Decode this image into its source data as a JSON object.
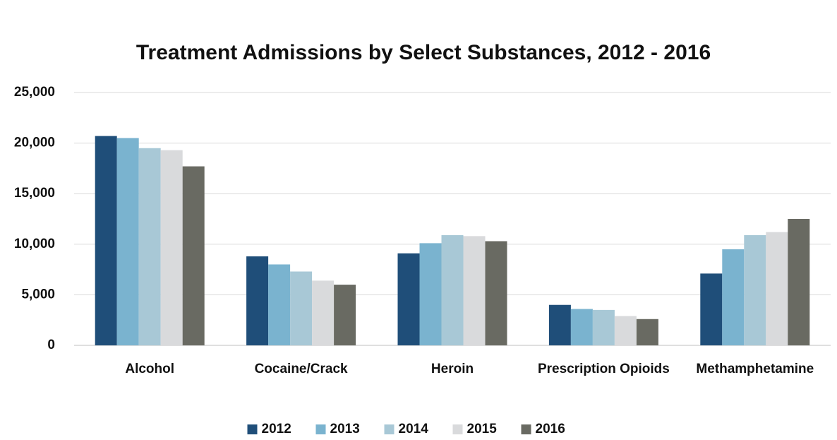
{
  "chart_data": {
    "type": "bar",
    "title": "Treatment Admissions by Select Substances, 2012 - 2016",
    "categories": [
      "Alcohol",
      "Cocaine/Crack",
      "Heroin",
      "Prescription Opioids",
      "Methamphetamine"
    ],
    "series": [
      {
        "name": "2012",
        "color": "#1f4e79",
        "values": [
          20700,
          8800,
          9100,
          4000,
          7100
        ]
      },
      {
        "name": "2013",
        "color": "#7ab3cf",
        "values": [
          20500,
          8000,
          10100,
          3600,
          9500
        ]
      },
      {
        "name": "2014",
        "color": "#a8c8d6",
        "values": [
          19500,
          7300,
          10900,
          3500,
          10900
        ]
      },
      {
        "name": "2015",
        "color": "#d9dadc",
        "values": [
          19300,
          6400,
          10800,
          2900,
          11200
        ]
      },
      {
        "name": "2016",
        "color": "#696a62",
        "values": [
          17700,
          6000,
          10300,
          2600,
          12500
        ]
      }
    ],
    "ylim": [
      0,
      25000
    ],
    "yticks": [
      0,
      {
        "value": 5000,
        "label": "5,000"
      },
      {
        "value": 10000,
        "label": "10,000"
      },
      {
        "value": 15000,
        "label": "15,000"
      },
      {
        "value": 20000,
        "label": "20,000"
      },
      {
        "value": 25000,
        "label": "25,000"
      }
    ],
    "grid": true,
    "legend": "bottom"
  }
}
